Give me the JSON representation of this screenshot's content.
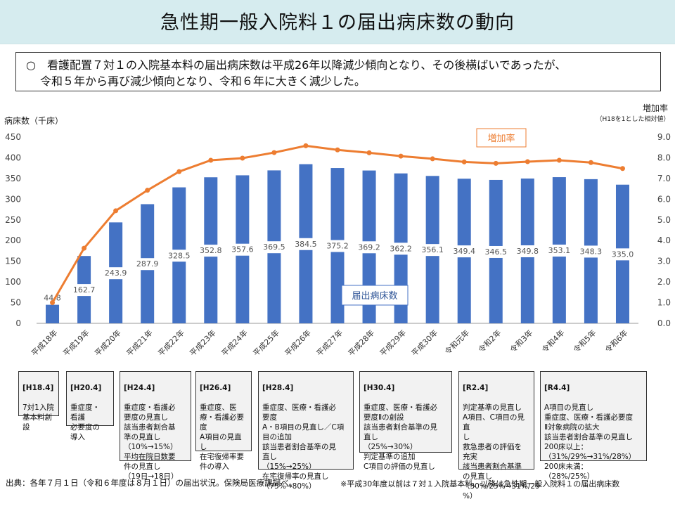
{
  "title": "急性期一般入院料１の届出病床数の動向",
  "summary": {
    "bullet": "○",
    "lines": [
      "看護配置７対１の入院基本料の届出病床数は平成26年以降減少傾向となり、その後横ばいであったが、",
      "令和５年から再び減少傾向となり、令和６年に大きく減少した。"
    ]
  },
  "chart_data": {
    "type": "bar",
    "left_axis_label": "病床数（千床）",
    "right_axis_label": "増加率",
    "right_axis_sublabel": "（H18を1とした相対値）",
    "categories": [
      "平成18年",
      "平成19年",
      "平成20年",
      "平成21年",
      "平成22年",
      "平成23年",
      "平成24年",
      "平成25年",
      "平成26年",
      "平成27年",
      "平成28年",
      "平成29年",
      "平成30年",
      "令和元年",
      "令和2年",
      "令和3年",
      "令和4年",
      "令和5年",
      "令和6年"
    ],
    "series": [
      {
        "name": "届出病床数",
        "kind": "bar",
        "axis": "left",
        "color": "#4472c4",
        "values": [
          44.8,
          162.7,
          243.9,
          287.9,
          328.5,
          352.8,
          357.6,
          369.5,
          384.5,
          375.2,
          369.2,
          362.2,
          356.1,
          349.4,
          346.5,
          349.8,
          353.1,
          348.3,
          335.0
        ],
        "labels": [
          "44.8",
          "162.7",
          "243.9",
          "287.9",
          "328.5",
          "352.8",
          "357.6",
          "369.5",
          "384.5",
          "375.2",
          "369.2",
          "362.2",
          "356.1",
          "349.4",
          "346.5",
          "349.8",
          "353.1",
          "348.3",
          "335.0"
        ]
      },
      {
        "name": "増加率",
        "kind": "line",
        "axis": "right",
        "color": "#ed7d31",
        "values": [
          1.0,
          3.63,
          5.44,
          6.43,
          7.33,
          7.88,
          7.98,
          8.25,
          8.58,
          8.38,
          8.24,
          8.08,
          7.95,
          7.8,
          7.73,
          7.81,
          7.88,
          7.77,
          7.48
        ]
      }
    ],
    "y_left": {
      "min": 0,
      "max": 450,
      "ticks": [
        "0",
        "50",
        "100",
        "150",
        "200",
        "250",
        "300",
        "350",
        "400",
        "450"
      ]
    },
    "y_right": {
      "min": 0,
      "max": 9,
      "ticks": [
        "0.0",
        "1.0",
        "2.0",
        "3.0",
        "4.0",
        "5.0",
        "6.0",
        "7.0",
        "8.0",
        "9.0"
      ]
    },
    "grid": false
  },
  "events": [
    {
      "head": "[H18.4]",
      "body": "7対1入院\n基本料創\n設"
    },
    {
      "head": "[H20.4]",
      "body": "重症度・\n看護\n必要度の\n導入"
    },
    {
      "head": "[H24.4]",
      "body": "重症度・看護必\n要度の見直し\n該当患者割合基\n準の見直し\n（10%→15%）\n平均在院日数要\n件の見直し\n（19日→18日）"
    },
    {
      "head": "[H26.4]",
      "body": "重症度、医\n療・看護必要\n度\nA項目の見直\nし\n在宅復帰率要\n件の導入"
    },
    {
      "head": "[H28.4]",
      "body": "重症度、医療・看護必\n要度\nA・B項目の見直し／C項\n目の追加\n該当患者割合基準の見\n直し\n（15%→25%）\n在宅復帰率の見直し\n（75%→80%）"
    },
    {
      "head": "[H30.4]",
      "body": "重症度、医療・看護必\n要度Ⅱの創設\n該当患者割合基準の見\n直し\n（25%→30%）\n判定基準の追加\nC項目の評価の見直し"
    },
    {
      "head": "[R2.4]",
      "body": "判定基準の見直し\nA項目、C項目の見直\nし\n救急患者の評価を\n充実\n該当患者割合基準\nの見直し\n（30%/25%→31%/29\n%）"
    },
    {
      "head": "[R4.4]",
      "body": "A項目の見直し\n重症度、医療・看護必要度\nⅡ対象病院の拡大\n該当患者割合基準の見直し\n200床以上：\n（31%/29%→31%/28%）\n200床未満：\n（28%/25%）"
    }
  ],
  "footer": {
    "source": "出典：各年７月１日（令和６年度は８月１日）の届出状況。保険局医療課調べ。",
    "note": "※平成30年度以前は７対１入院基本料、以降は急性期一般入院料１の届出病床数"
  }
}
